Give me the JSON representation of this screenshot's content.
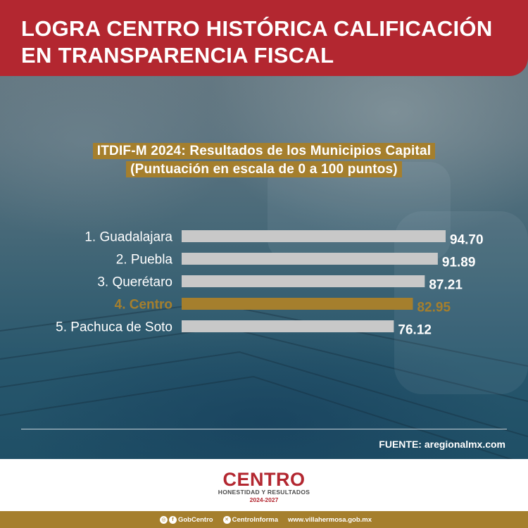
{
  "header": {
    "title_line1": "LOGRA CENTRO HISTÓRICA CALIFICACIÓN",
    "title_line2": "EN TRANSPARENCIA FISCAL"
  },
  "chart_data": {
    "type": "bar",
    "orientation": "horizontal",
    "title": "ITDIF-M 2024: Resultados de los Municipios Capital",
    "subtitle": "(Puntuación en escala de 0 a 100 puntos)",
    "categories": [
      "1. Guadalajara",
      "2. Puebla",
      "3. Querétaro",
      "4. Centro",
      "5. Pachuca de Soto"
    ],
    "values": [
      94.7,
      91.89,
      87.21,
      82.95,
      76.12
    ],
    "value_labels": [
      "94.70",
      "91.89",
      "87.21",
      "82.95",
      "76.12"
    ],
    "highlight_index": 3,
    "xlim": [
      0,
      100
    ],
    "grid": false,
    "colors": {
      "bar": "#c8c8c8",
      "highlight": "#a57f2d",
      "label": "#ffffff"
    }
  },
  "source": "FUENTE: aregionalmx.com",
  "logo": {
    "name": "CENTRO",
    "tagline": "HONESTIDAD Y RESULTADOS",
    "years": "2024-2027"
  },
  "footer": {
    "social": [
      {
        "icon": "instagram-facebook-icon",
        "handle": "GobCentro"
      },
      {
        "icon": "x-icon",
        "handle": "CentroInforma"
      }
    ],
    "website": "www.villahermosa.gob.mx"
  },
  "colors": {
    "brand_red": "#b32730",
    "brand_gold": "#a57f2d"
  }
}
